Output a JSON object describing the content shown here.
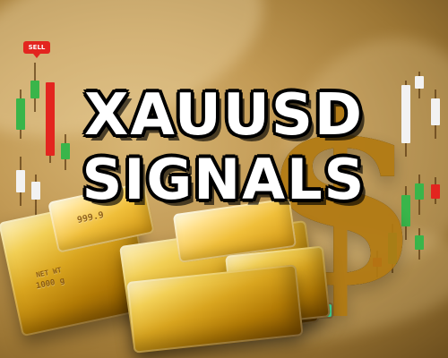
{
  "title": {
    "line1": "XAUUSD",
    "line2": "SIGNALS"
  },
  "price_tag": {
    "text": "SELL"
  },
  "gold_bars": {
    "front_label_top": "999.9",
    "front_label_bottom_1": "NET WT",
    "front_label_bottom_2": "1000 g"
  },
  "symbol": {
    "dollar": "$"
  },
  "colors": {
    "candle_green": "#39b54a",
    "candle_red": "#e3251f",
    "candle_white": "#f2f2f2",
    "tag_red": "#e3251f",
    "accent_teal": "#42f0a8"
  }
}
